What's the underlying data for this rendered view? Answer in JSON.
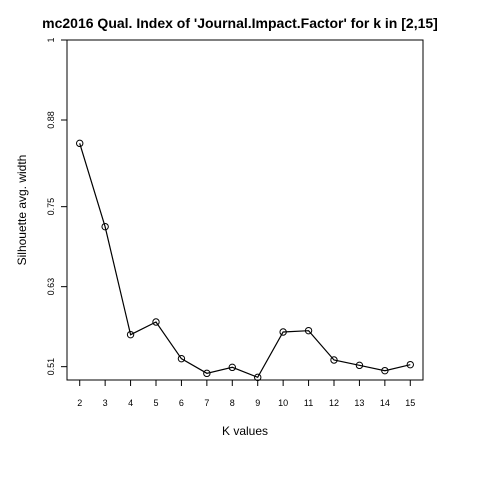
{
  "chart_data": {
    "type": "line",
    "title": "mc2016 Qual. Index of 'Journal.Impact.Factor' for k in [2,15]",
    "xlabel": "K values",
    "ylabel": "Silhouette avg. width",
    "x": [
      2,
      3,
      4,
      5,
      6,
      7,
      8,
      9,
      10,
      11,
      12,
      13,
      14,
      15
    ],
    "y": [
      0.845,
      0.72,
      0.558,
      0.577,
      0.522,
      0.5,
      0.509,
      0.494,
      0.562,
      0.564,
      0.52,
      0.512,
      0.504,
      0.513
    ],
    "xticks": [
      "2",
      "3",
      "4",
      "5",
      "6",
      "7",
      "8",
      "9",
      "10",
      "11",
      "12",
      "13",
      "14",
      "15"
    ],
    "yticks": [
      0.51,
      0.63,
      0.75,
      0.88,
      1
    ],
    "ytick_labels": [
      "0.51",
      "0.63",
      "0.75",
      "0.88",
      "1"
    ],
    "xlim": [
      1.5,
      15.5
    ],
    "ylim": [
      0.49,
      1.0
    ],
    "grid": false,
    "marker": "open-circle"
  }
}
